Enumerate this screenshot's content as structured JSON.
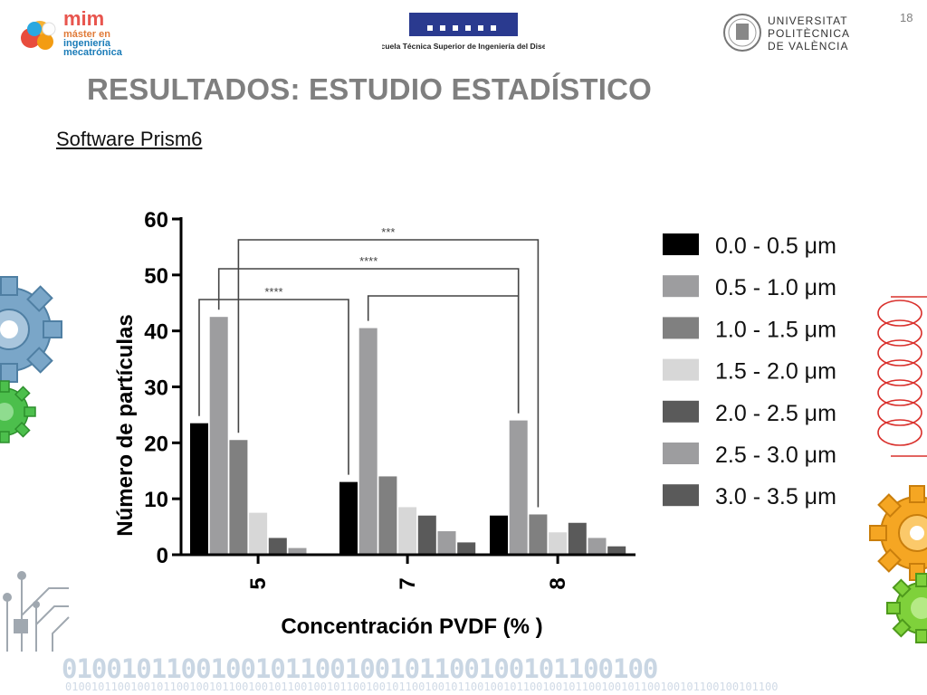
{
  "slide": {
    "number": "18",
    "title": "RESULTADOS: ESTUDIO ESTADÍSTICO",
    "subtitle": "Software Prism6",
    "logos": {
      "mim": [
        "máster en",
        "ingeniería",
        "mecatrónica"
      ],
      "mim_initials": "mim",
      "etsid": "Escuela Técnica Superior de Ingeniería del Diseño",
      "upv": [
        "UNIVERSITAT",
        "POLITÈCNICA",
        "DE VALÈNCIA"
      ]
    },
    "binary_large": "0100101100100101100100101100100101100100",
    "binary_small": "0100101100100101100100101100100101100100101100100101100100101100100101100100101100100101100100101100100101100"
  },
  "colors": {
    "title": "#7f7f7f",
    "series": [
      "#000000",
      "#9d9d9f",
      "#808080",
      "#d7d7d7",
      "#5a5a5a",
      "#9d9d9f",
      "#5a5a5a"
    ]
  },
  "chart_data": {
    "type": "bar",
    "title": "",
    "xlabel": "Concentración PVDF (% )",
    "ylabel": "Número de partículas",
    "ylim": [
      0,
      60
    ],
    "yticks": [
      0,
      10,
      20,
      30,
      40,
      50,
      60
    ],
    "categories": [
      "5",
      "7",
      "8"
    ],
    "series": [
      {
        "name": "0.0 - 0.5 μm",
        "values": [
          23.5,
          13,
          7
        ]
      },
      {
        "name": "0.5 - 1.0 μm",
        "values": [
          42.5,
          40.5,
          24
        ]
      },
      {
        "name": "1.0 - 1.5 μm",
        "values": [
          20.5,
          14,
          7.2
        ]
      },
      {
        "name": "1.5 - 2.0 μm",
        "values": [
          7.5,
          8.5,
          4
        ]
      },
      {
        "name": "2.0 - 2.5  μm",
        "values": [
          3,
          7,
          5.7
        ]
      },
      {
        "name": "2.5 - 3.0  μm",
        "values": [
          1.2,
          4.2,
          3
        ]
      },
      {
        "name": "3.0 - 3.5 μm",
        "values": [
          0,
          2.2,
          1.5
        ]
      }
    ],
    "significance": [
      {
        "from": "5",
        "to": "7",
        "label": "****"
      },
      {
        "from": "5",
        "to": "8",
        "label": "****"
      },
      {
        "from": "5",
        "to": "8",
        "label": "***"
      },
      {
        "from": "7",
        "to": "8",
        "label": ""
      }
    ],
    "grid": false,
    "legend_position": "right"
  }
}
